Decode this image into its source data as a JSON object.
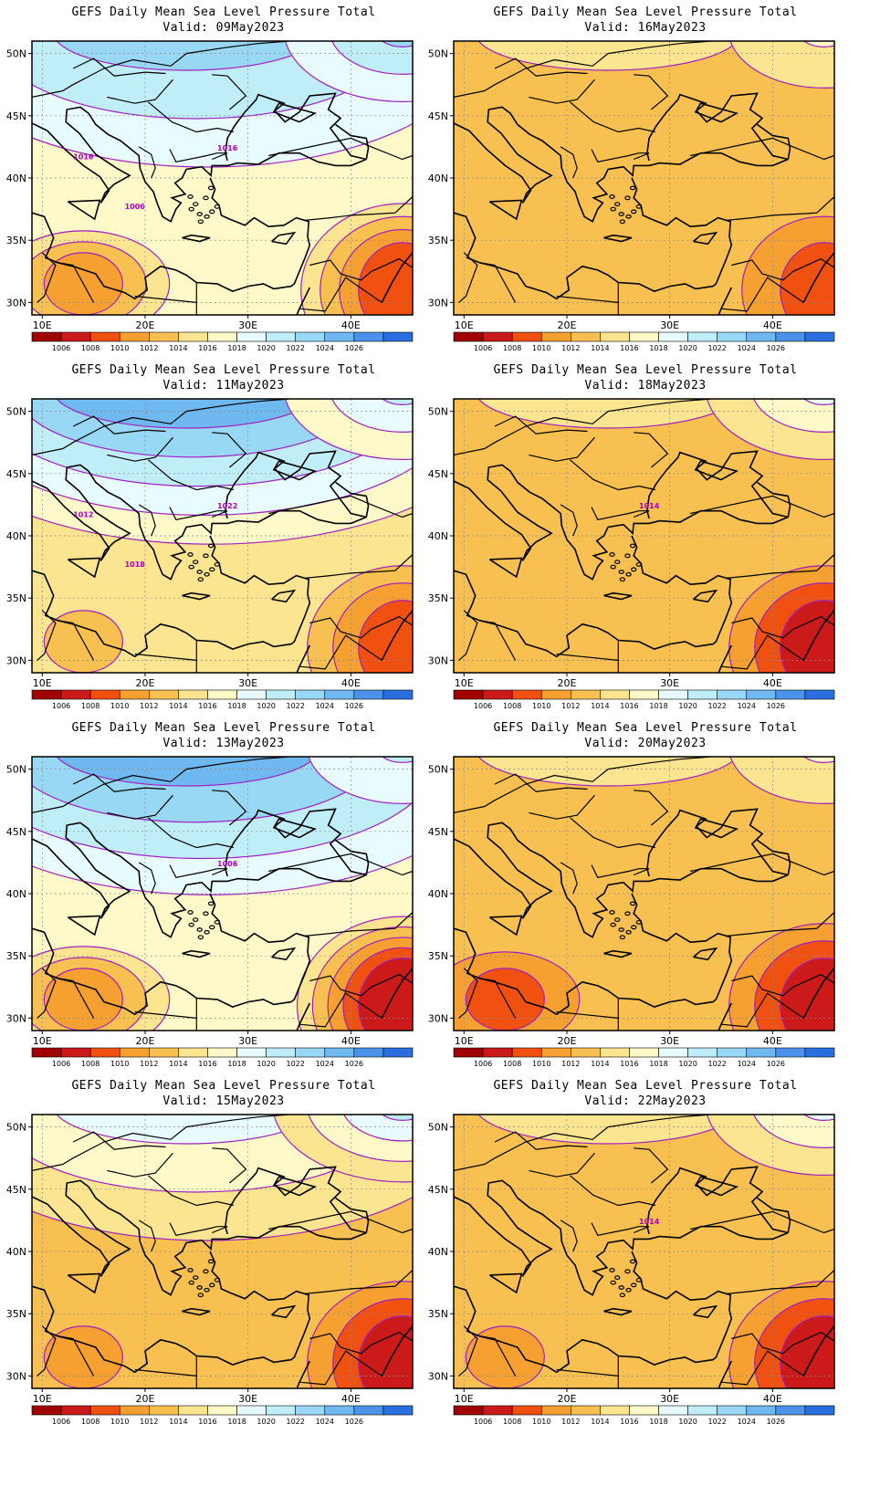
{
  "palette": {
    "bins": [
      "#a00000",
      "#cc1a1a",
      "#f05010",
      "#f5a030",
      "#f8c050",
      "#fce590",
      "#fff8c8",
      "#e8fbff",
      "#c0eef8",
      "#98d8f5",
      "#70b8f0",
      "#4d92ea",
      "#2a6ee0"
    ],
    "contour_color": "#a020c0",
    "ocean_border": "#000000"
  },
  "colorbar_labels": [
    "1006",
    "1008",
    "1010",
    "1012",
    "1014",
    "1016",
    "1018",
    "1020",
    "1022",
    "1024",
    "1026"
  ],
  "y_ticks": [
    "50N",
    "45N",
    "40N",
    "35N",
    "30N"
  ],
  "x_ticks": [
    "10E",
    "20E",
    "30E",
    "40E"
  ],
  "panels": [
    {
      "title": "GEFS Daily Mean Sea Level Pressure Total",
      "valid": "Valid: 09May2023",
      "base": 6,
      "north": 9,
      "lowSW": 3,
      "lowSE": 2,
      "highNE": 9,
      "labels": [
        "1016",
        "1016",
        "1006"
      ]
    },
    {
      "title": "GEFS Daily Mean Sea Level Pressure Total",
      "valid": "Valid: 16May2023",
      "base": 4,
      "north": 5,
      "lowSW": 4,
      "lowSE": 2,
      "highNE": 6,
      "labels": []
    },
    {
      "title": "GEFS Daily Mean Sea Level Pressure Total",
      "valid": "Valid: 11May2023",
      "base": 5,
      "north": 10,
      "lowSW": 4,
      "lowSE": 2,
      "highNE": 8,
      "labels": [
        "1022",
        "1012",
        "1018"
      ]
    },
    {
      "title": "GEFS Daily Mean Sea Level Pressure Total",
      "valid": "Valid: 18May2023",
      "base": 4,
      "north": 5,
      "lowSW": 5,
      "lowSE": 1,
      "highNE": 7,
      "labels": [
        "1014"
      ]
    },
    {
      "title": "GEFS Daily Mean Sea Level Pressure Total",
      "valid": "Valid: 13May2023",
      "base": 6,
      "north": 10,
      "lowSW": 3,
      "lowSE": 1,
      "highNE": 8,
      "labels": [
        "1006"
      ]
    },
    {
      "title": "GEFS Daily Mean Sea Level Pressure Total",
      "valid": "Valid: 20May2023",
      "base": 4,
      "north": 5,
      "lowSW": 2,
      "lowSE": 1,
      "highNE": 6,
      "labels": []
    },
    {
      "title": "GEFS Daily Mean Sea Level Pressure Total",
      "valid": "Valid: 15May2023",
      "base": 4,
      "north": 7,
      "lowSW": 3,
      "lowSE": 1,
      "highNE": 8,
      "labels": []
    },
    {
      "title": "GEFS Daily Mean Sea Level Pressure Total",
      "valid": "Valid: 22May2023",
      "base": 4,
      "north": 5,
      "lowSW": 3,
      "lowSE": 1,
      "highNE": 7,
      "labels": [
        "1014"
      ]
    }
  ]
}
